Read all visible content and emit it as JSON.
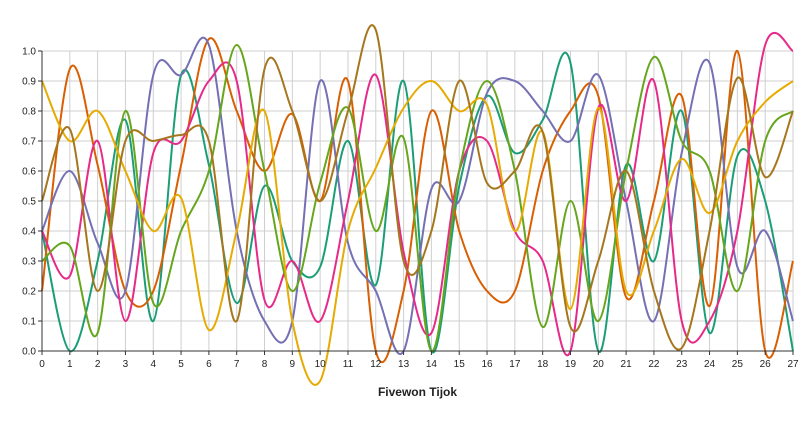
{
  "chart_data": {
    "type": "line",
    "title": "",
    "xlabel": "Fivewon Tijok",
    "ylabel": "",
    "xlim": [
      0,
      27
    ],
    "ylim": [
      0,
      1
    ],
    "grid": true,
    "x": [
      0,
      1,
      2,
      3,
      4,
      5,
      6,
      7,
      8,
      9,
      10,
      11,
      12,
      13,
      14,
      15,
      16,
      17,
      18,
      19,
      20,
      21,
      22,
      23,
      24,
      25,
      26,
      27
    ],
    "x_ticks": [
      "0",
      "1",
      "2",
      "3",
      "4",
      "5",
      "6",
      "7",
      "8",
      "9",
      "10",
      "11",
      "12",
      "13",
      "14",
      "15",
      "16",
      "17",
      "18",
      "19",
      "20",
      "21",
      "22",
      "23",
      "24",
      "25",
      "26",
      "27"
    ],
    "y_ticks": [
      "0.0",
      "0.1",
      "0.2",
      "0.3",
      "0.4",
      "0.5",
      "0.6",
      "0.7",
      "0.8",
      "0.9",
      "1.0"
    ],
    "series": [
      {
        "color": "#1b9e77",
        "values": [
          0.4,
          0.0,
          0.3,
          0.77,
          0.1,
          0.92,
          0.62,
          0.16,
          0.55,
          0.3,
          0.28,
          0.7,
          0.22,
          0.9,
          0.0,
          0.55,
          0.85,
          0.66,
          0.77,
          0.96,
          0.0,
          0.62,
          0.3,
          0.8,
          0.06,
          0.65,
          0.5,
          0.0
        ]
      },
      {
        "color": "#d95f02",
        "values": [
          0.2,
          0.94,
          0.62,
          0.2,
          0.2,
          0.62,
          1.04,
          0.8,
          0.6,
          0.79,
          0.5,
          0.9,
          0.0,
          0.2,
          0.8,
          0.4,
          0.2,
          0.2,
          0.6,
          0.8,
          0.85,
          0.18,
          0.5,
          0.85,
          0.15,
          1.0,
          0.0,
          0.3
        ]
      },
      {
        "color": "#7570b3",
        "values": [
          0.4,
          0.6,
          0.36,
          0.2,
          0.92,
          0.92,
          1.02,
          0.4,
          0.1,
          0.1,
          0.9,
          0.36,
          0.2,
          0.0,
          0.54,
          0.5,
          0.86,
          0.9,
          0.8,
          0.7,
          0.92,
          0.5,
          0.1,
          0.66,
          0.96,
          0.28,
          0.4,
          0.1
        ]
      },
      {
        "color": "#e7298a",
        "values": [
          0.4,
          0.25,
          0.7,
          0.1,
          0.66,
          0.7,
          0.9,
          0.9,
          0.17,
          0.3,
          0.1,
          0.5,
          0.92,
          0.33,
          0.06,
          0.6,
          0.7,
          0.4,
          0.3,
          0.0,
          0.81,
          0.5,
          0.9,
          0.1,
          0.1,
          0.4,
          1.02,
          1.0
        ]
      },
      {
        "color": "#66a61e",
        "values": [
          0.3,
          0.35,
          0.06,
          0.8,
          0.16,
          0.4,
          0.6,
          1.02,
          0.6,
          0.2,
          0.56,
          0.81,
          0.4,
          0.71,
          0.0,
          0.6,
          0.9,
          0.6,
          0.08,
          0.5,
          0.1,
          0.6,
          0.98,
          0.7,
          0.6,
          0.2,
          0.7,
          0.8
        ]
      },
      {
        "color": "#e6ab02",
        "values": [
          0.9,
          0.7,
          0.8,
          0.6,
          0.4,
          0.51,
          0.07,
          0.4,
          0.8,
          0.1,
          -0.1,
          0.4,
          0.61,
          0.81,
          0.9,
          0.8,
          0.82,
          0.4,
          0.73,
          0.14,
          0.81,
          0.2,
          0.4,
          0.64,
          0.46,
          0.7,
          0.83,
          0.9
        ]
      },
      {
        "color": "#a6761d",
        "values": [
          0.5,
          0.74,
          0.2,
          0.7,
          0.7,
          0.72,
          0.7,
          0.1,
          0.94,
          0.8,
          0.5,
          0.8,
          1.07,
          0.3,
          0.4,
          0.9,
          0.56,
          0.6,
          0.73,
          0.08,
          0.3,
          0.6,
          0.2,
          0.01,
          0.4,
          0.91,
          0.58,
          0.8
        ]
      }
    ]
  }
}
